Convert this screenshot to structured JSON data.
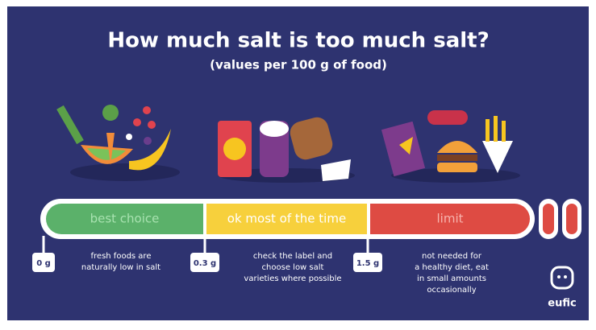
{
  "header": {
    "title": "How much salt is too much salt?",
    "subtitle": "(values per 100 g of food)"
  },
  "zones": [
    {
      "label": "best choice",
      "marker": "0 g",
      "description": [
        "fresh foods are",
        "naturally low in salt"
      ]
    },
    {
      "label": "ok most of the time",
      "marker": "0.3 g",
      "description": [
        "check the label and",
        "choose low salt",
        "varieties where possible"
      ]
    },
    {
      "label": "limit",
      "marker": "1.5 g",
      "description": [
        "not needed for",
        "a healthy diet, eat",
        "in small amounts",
        "occasionally"
      ]
    }
  ],
  "logo": "eufic"
}
